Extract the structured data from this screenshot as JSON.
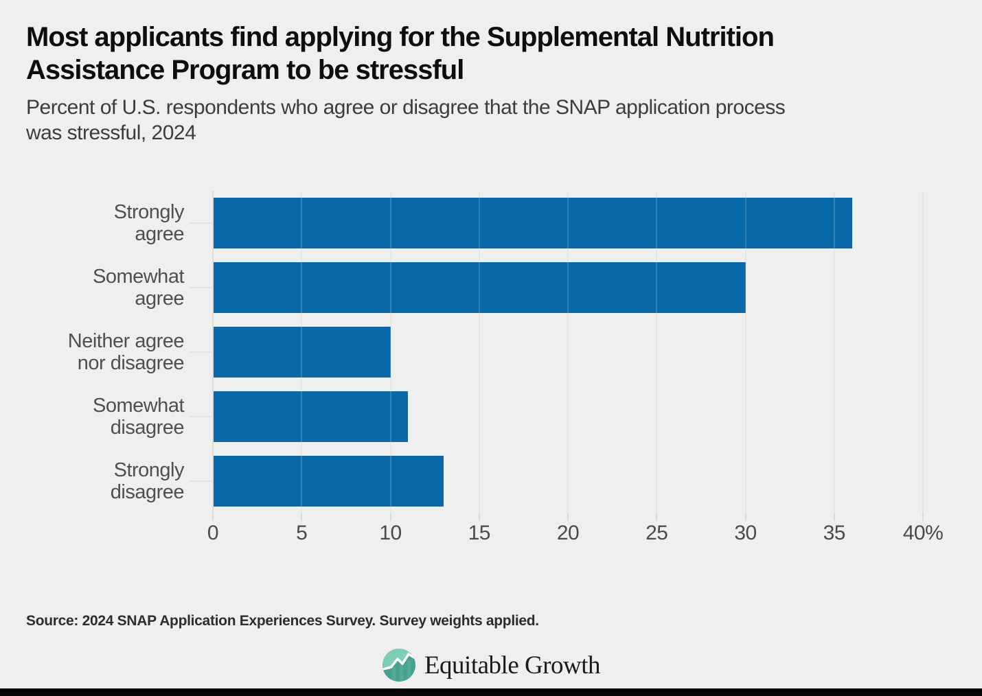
{
  "header": {
    "title_lines": [
      "Most applicants find applying for the Supplemental Nutrition",
      "Assistance Program to be stressful"
    ],
    "subtitle_lines": [
      "Percent of U.S. respondents who agree or disagree that the SNAP application process",
      "was stressful, 2024"
    ]
  },
  "chart_data": {
    "type": "bar",
    "orientation": "horizontal",
    "title": "Most applicants find applying for the Supplemental Nutrition Assistance Program to be stressful",
    "subtitle": "Percent of U.S. respondents who agree or disagree that the SNAP application process was stressful, 2024",
    "categories": [
      "Strongly agree",
      "Somewhat agree",
      "Neither agree nor disagree",
      "Somewhat disagree",
      "Strongly disagree"
    ],
    "category_label_lines": [
      [
        "Strongly",
        "agree"
      ],
      [
        "Somewhat",
        "agree"
      ],
      [
        "Neither agree",
        "nor disagree"
      ],
      [
        "Somewhat",
        "disagree"
      ],
      [
        "Strongly",
        "disagree"
      ]
    ],
    "values": [
      36,
      30,
      10,
      11,
      13
    ],
    "unit": "percent",
    "xlim": [
      0,
      40
    ],
    "x_ticks": [
      0,
      5,
      10,
      15,
      20,
      25,
      30,
      35,
      40
    ],
    "x_tick_labels": [
      "0",
      "5",
      "10",
      "15",
      "20",
      "25",
      "30",
      "35",
      "40%"
    ],
    "xlabel": "",
    "ylabel": "",
    "grid": true,
    "legend_position": "none",
    "bar_color": "#0a6aa9"
  },
  "footer": {
    "source": "Source: 2024 SNAP Application Experiences Survey. Survey weights applied.",
    "logo_text": "Equitable Growth"
  },
  "colors": {
    "background": "#efefef",
    "bar": "#0a6aa9",
    "title_text": "#0d0d0d",
    "subtitle_text": "#3c3c3c",
    "axis_text": "#4a4a4a",
    "gridline": "#e3e3e3",
    "bottom_bar": "#060606",
    "logo_teal_light": "#7ecdb6",
    "logo_teal": "#56b19b",
    "logo_teal_dark": "#49a18d"
  },
  "icons": {
    "logo_mark": "line-chart-circle-icon"
  }
}
